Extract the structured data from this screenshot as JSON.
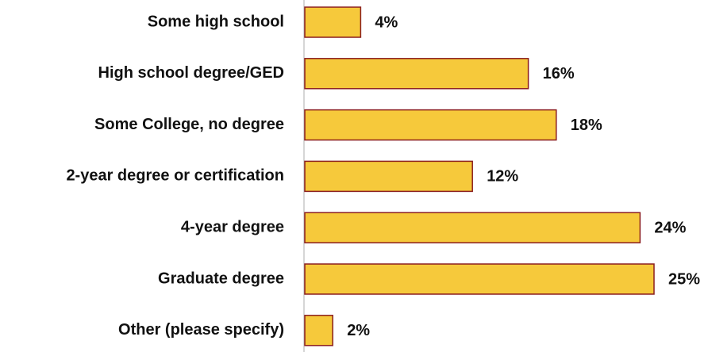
{
  "chart_data": {
    "type": "barh",
    "categories": [
      "Some high school",
      "High school degree/GED",
      "Some College, no degree",
      "2-year degree or certification",
      "4-year degree",
      "Graduate degree",
      "Other (please specify)"
    ],
    "values": [
      4,
      16,
      18,
      12,
      24,
      25,
      2
    ],
    "value_labels": [
      "4%",
      "16%",
      "18%",
      "12%",
      "24%",
      "25%",
      "2%"
    ],
    "color": "#f6c93b",
    "edge_color": "#8b1e1e"
  }
}
